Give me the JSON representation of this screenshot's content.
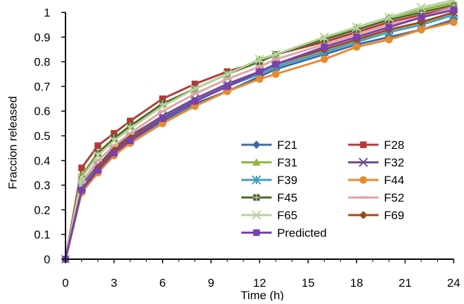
{
  "chart_data": {
    "type": "line",
    "title": "",
    "xlabel": "Time (h)",
    "ylabel": "Fraccion released",
    "xlim": [
      0,
      24
    ],
    "ylim": [
      0,
      1
    ],
    "x_ticks": [
      0,
      3,
      6,
      9,
      12,
      15,
      18,
      21,
      24
    ],
    "y_ticks": [
      0,
      0.1,
      0.2,
      0.3,
      0.4,
      0.5,
      0.6,
      0.7,
      0.8,
      0.9,
      1
    ],
    "x_tick_labels": [
      "0",
      "3",
      "6",
      "9",
      "12",
      "15",
      "18",
      "21",
      "24"
    ],
    "y_tick_labels": [
      "0",
      "0.1",
      "0.2",
      "0.3",
      "0.4",
      "0.5",
      "0.6",
      "0.7",
      "0.8",
      "0.9",
      "1"
    ],
    "grid": false,
    "legend_position": "right, inside plot",
    "series": [
      {
        "name": "F21",
        "color": "#3d6aa2",
        "marker": "diamond",
        "x": [
          0,
          1,
          2,
          3,
          4,
          6,
          8,
          10,
          12,
          13,
          16,
          18,
          20,
          22,
          24
        ],
        "values": [
          0,
          0.28,
          0.36,
          0.43,
          0.48,
          0.56,
          0.63,
          0.68,
          0.74,
          0.77,
          0.83,
          0.87,
          0.9,
          0.93,
          0.97
        ]
      },
      {
        "name": "F28",
        "color": "#b23a3a",
        "marker": "square",
        "x": [
          0,
          1,
          2,
          3,
          4,
          6,
          8,
          10,
          12,
          13,
          16,
          18,
          20,
          22,
          24
        ],
        "values": [
          0,
          0.37,
          0.46,
          0.51,
          0.56,
          0.65,
          0.71,
          0.76,
          0.8,
          0.83,
          0.88,
          0.92,
          0.96,
          0.99,
          1.02
        ]
      },
      {
        "name": "F31",
        "color": "#8fb53f",
        "marker": "triangle",
        "x": [
          0,
          1,
          2,
          3,
          4,
          6,
          8,
          10,
          12,
          13,
          16,
          18,
          20,
          22,
          24
        ],
        "values": [
          0,
          0.34,
          0.43,
          0.49,
          0.54,
          0.63,
          0.69,
          0.75,
          0.81,
          0.83,
          0.89,
          0.94,
          0.98,
          1.01,
          1.04
        ]
      },
      {
        "name": "F32",
        "color": "#6b4e8f",
        "marker": "x",
        "x": [
          0,
          1,
          2,
          3,
          4,
          6,
          8,
          10,
          12,
          13,
          16,
          18,
          20,
          22,
          24
        ],
        "values": [
          0,
          0.3,
          0.38,
          0.45,
          0.5,
          0.58,
          0.65,
          0.71,
          0.76,
          0.79,
          0.85,
          0.89,
          0.93,
          0.96,
          1.0
        ]
      },
      {
        "name": "F39",
        "color": "#3f9fb8",
        "marker": "star",
        "x": [
          0,
          1,
          2,
          3,
          4,
          6,
          8,
          10,
          12,
          13,
          16,
          18,
          20,
          22,
          24
        ],
        "values": [
          0,
          0.29,
          0.37,
          0.44,
          0.49,
          0.57,
          0.64,
          0.7,
          0.75,
          0.78,
          0.84,
          0.88,
          0.92,
          0.95,
          0.99
        ]
      },
      {
        "name": "F44",
        "color": "#e8892e",
        "marker": "circle",
        "x": [
          0,
          1,
          2,
          3,
          4,
          6,
          8,
          10,
          12,
          13,
          16,
          18,
          20,
          22,
          24
        ],
        "values": [
          0,
          0.27,
          0.35,
          0.42,
          0.47,
          0.55,
          0.62,
          0.68,
          0.73,
          0.75,
          0.81,
          0.86,
          0.89,
          0.93,
          0.96
        ]
      },
      {
        "name": "F45",
        "color": "#4f6b2a",
        "marker": "plus",
        "x": [
          0,
          1,
          2,
          3,
          4,
          6,
          8,
          10,
          12,
          13,
          16,
          18,
          20,
          22,
          24
        ],
        "values": [
          0,
          0.33,
          0.43,
          0.49,
          0.54,
          0.63,
          0.69,
          0.75,
          0.8,
          0.83,
          0.89,
          0.93,
          0.97,
          1.0,
          1.03
        ]
      },
      {
        "name": "F52",
        "color": "#e2a3a3",
        "marker": "dash",
        "x": [
          0,
          1,
          2,
          3,
          4,
          6,
          8,
          10,
          12,
          13,
          16,
          18,
          20,
          22,
          24
        ],
        "values": [
          0,
          0.31,
          0.4,
          0.46,
          0.51,
          0.6,
          0.67,
          0.73,
          0.78,
          0.81,
          0.87,
          0.91,
          0.95,
          0.98,
          1.02
        ]
      },
      {
        "name": "F65",
        "color": "#b6d39b",
        "marker": "x",
        "x": [
          0,
          1,
          2,
          3,
          4,
          6,
          8,
          10,
          12,
          13,
          16,
          18,
          20,
          22,
          24
        ],
        "values": [
          0,
          0.33,
          0.42,
          0.48,
          0.53,
          0.62,
          0.69,
          0.75,
          0.81,
          0.83,
          0.9,
          0.94,
          0.98,
          1.02,
          1.05
        ]
      },
      {
        "name": "F69",
        "color": "#9e4a10",
        "marker": "diamond",
        "x": [
          0,
          1,
          2,
          3,
          4,
          6,
          8,
          10,
          12,
          13,
          16,
          18,
          20,
          22,
          24
        ],
        "values": [
          0,
          0.28,
          0.37,
          0.44,
          0.49,
          0.57,
          0.64,
          0.7,
          0.76,
          0.79,
          0.85,
          0.89,
          0.93,
          0.96,
          1.0
        ]
      },
      {
        "name": "Predicted",
        "color": "#7a3fb0",
        "marker": "square",
        "x": [
          0,
          1,
          2,
          3,
          4,
          6,
          8,
          10,
          12,
          13,
          16,
          18,
          20,
          22,
          24
        ],
        "values": [
          0,
          0.28,
          0.36,
          0.43,
          0.48,
          0.57,
          0.64,
          0.7,
          0.76,
          0.79,
          0.86,
          0.9,
          0.94,
          0.98,
          1.01
        ]
      }
    ]
  }
}
